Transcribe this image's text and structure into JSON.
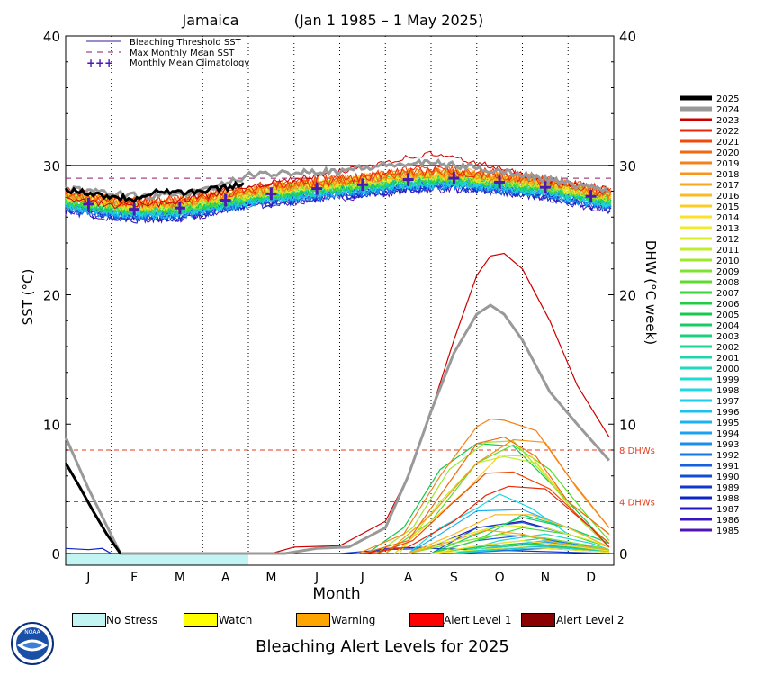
{
  "chart_data": {
    "type": "line",
    "title": "Jamaica",
    "subtitle": "(Jan 1 1985 – 1 May 2025)",
    "xlabel": "Month",
    "ylabel_left": "SST (°C)",
    "ylabel_right": "DHW (°C week)",
    "ylim": [
      0,
      40
    ],
    "yticks": [
      "0",
      "10",
      "20",
      "30",
      "40"
    ],
    "yticks_right": [
      "0",
      "10",
      "20",
      "30",
      "40"
    ],
    "months": [
      "J",
      "F",
      "M",
      "A",
      "M",
      "J",
      "J",
      "A",
      "S",
      "O",
      "N",
      "D"
    ],
    "grid": "vertical dotted at month boundaries",
    "bleaching_threshold_sst": 30.0,
    "max_monthly_mean_sst": 29.0,
    "dhw_thresholds": [
      {
        "value": 8,
        "label": "8 DHWs"
      },
      {
        "value": 4,
        "label": "4 DHWs"
      }
    ],
    "inner_legend": [
      "Bleaching Threshold SST",
      "Max Monthly Mean SST",
      "Monthly Mean Climatology"
    ],
    "monthly_mean_climatology": [
      27.0,
      26.6,
      26.7,
      27.3,
      27.8,
      28.2,
      28.5,
      28.9,
      29.0,
      28.7,
      28.3,
      27.6
    ],
    "series": [
      {
        "name": "2025",
        "color": "#000000",
        "sst": {
          "x": [
            0,
            0.5,
            1.0,
            1.5,
            2.0,
            2.5,
            3.0,
            3.5,
            3.95
          ],
          "y": [
            28.1,
            27.9,
            27.6,
            27.4,
            28.1,
            27.9,
            28.0,
            28.3,
            28.6
          ]
        },
        "dhw": {
          "x": [
            0,
            0.3,
            0.6,
            0.9,
            1.2
          ],
          "y": [
            7.0,
            5.2,
            3.3,
            1.5,
            0.0
          ]
        }
      },
      {
        "name": "2024",
        "color": "#999999",
        "sst": {
          "x": [
            0,
            1,
            2,
            3,
            4,
            5,
            6,
            7,
            8,
            9,
            10,
            11,
            11.9
          ],
          "y": [
            28.2,
            27.8,
            27.6,
            28.0,
            29.2,
            29.5,
            29.6,
            30.0,
            30.2,
            29.8,
            29.3,
            28.6,
            28.1
          ]
        },
        "dhw": {
          "x": [
            0,
            0.5,
            1.2,
            4.8,
            5.5,
            6.2,
            7.0,
            7.5,
            8.0,
            8.5,
            9.0,
            9.3,
            9.6,
            10.0,
            10.6,
            11.2,
            11.9
          ],
          "y": [
            9.0,
            5.0,
            0.0,
            0.0,
            0.4,
            0.5,
            2.0,
            6.0,
            11.0,
            15.5,
            18.5,
            19.2,
            18.5,
            16.5,
            12.5,
            10.0,
            7.2
          ]
        }
      },
      {
        "name": "2023",
        "color": "#cc0000",
        "sst": {
          "x": [
            0,
            1,
            2,
            3,
            4,
            5,
            6,
            7,
            8,
            9,
            10,
            11,
            11.9
          ],
          "y": [
            27.4,
            26.9,
            27.0,
            27.6,
            28.4,
            28.9,
            29.5,
            30.3,
            30.9,
            30.2,
            29.3,
            28.6,
            28.1
          ]
        },
        "dhw": {
          "x": [
            0,
            4.5,
            5.0,
            6.0,
            7.0,
            7.5,
            8.0,
            8.5,
            9.0,
            9.3,
            9.6,
            10.0,
            10.6,
            11.2,
            11.9
          ],
          "y": [
            0.0,
            0.0,
            0.5,
            0.6,
            2.5,
            6.0,
            11.0,
            16.5,
            21.5,
            23.0,
            23.2,
            22.0,
            18.0,
            13.0,
            9.0
          ]
        }
      },
      {
        "name": "2022",
        "color": "#e8280a",
        "dhw": {
          "x": [
            6.5,
            7.5,
            8.5,
            9.2,
            9.7,
            10.5,
            11.5,
            11.9
          ],
          "y": [
            0.0,
            0.5,
            2.5,
            4.5,
            5.2,
            5.0,
            2.0,
            0.5
          ]
        }
      },
      {
        "name": "2021",
        "color": "#ee4a0a",
        "dhw": {
          "x": [
            6.8,
            7.6,
            8.5,
            9.2,
            9.8,
            10.6,
            11.5,
            11.9
          ],
          "y": [
            0.0,
            1.0,
            4.0,
            6.2,
            6.3,
            5.0,
            2.0,
            0.8
          ]
        }
      },
      {
        "name": "2020",
        "color": "#f26a10",
        "dhw": {
          "x": [
            6.5,
            7.5,
            8.3,
            9.0,
            9.6,
            10.3,
            11.0,
            11.9
          ],
          "y": [
            0.0,
            1.0,
            5.0,
            8.5,
            9.0,
            7.5,
            4.0,
            1.5
          ]
        }
      },
      {
        "name": "2019",
        "color": "#f58218",
        "dhw": {
          "x": [
            6.4,
            7.4,
            8.2,
            9.0,
            9.3,
            9.6,
            10.3,
            11.0,
            11.9
          ],
          "y": [
            0.0,
            1.5,
            6.0,
            9.8,
            10.4,
            10.3,
            9.5,
            6.0,
            2.0
          ]
        }
      },
      {
        "name": "2018",
        "color": "#f7951c",
        "dhw": {
          "x": [
            7.0,
            8.0,
            9.0,
            9.8,
            10.5,
            11.2,
            11.9
          ],
          "y": [
            0.0,
            3.0,
            7.0,
            8.8,
            8.6,
            5.0,
            2.0
          ]
        }
      },
      {
        "name": "2017",
        "color": "#f8a820",
        "dhw": {
          "x": [
            7.5,
            8.5,
            9.2,
            10.0,
            10.8,
            11.9
          ],
          "y": [
            0.0,
            1.0,
            1.8,
            1.5,
            0.8,
            0.3
          ]
        }
      },
      {
        "name": "2016",
        "color": "#f9bb24",
        "dhw": {
          "x": [
            7.5,
            8.5,
            9.4,
            10.2,
            11.0,
            11.9
          ],
          "y": [
            0.0,
            1.5,
            3.0,
            3.0,
            2.0,
            0.5
          ]
        }
      },
      {
        "name": "2015",
        "color": "#fbcd26",
        "dhw": {
          "x": [
            7.2,
            8.0,
            8.8,
            9.5,
            10.2,
            11.0,
            11.9
          ],
          "y": [
            0.0,
            2.5,
            5.0,
            7.6,
            7.5,
            4.0,
            1.5
          ]
        }
      },
      {
        "name": "2014",
        "color": "#fde028",
        "dhw": {
          "x": [
            8.0,
            9.0,
            10.0,
            11.0,
            11.9
          ],
          "y": [
            0.0,
            0.6,
            1.0,
            0.6,
            0.2
          ]
        }
      },
      {
        "name": "2013",
        "color": "#f4ea2a",
        "dhw": {
          "x": [
            8.0,
            9.0,
            10.0,
            11.0,
            11.9
          ],
          "y": [
            0.0,
            0.3,
            0.5,
            0.3,
            0.1
          ]
        }
      },
      {
        "name": "2012",
        "color": "#d8ee2c",
        "dhw": {
          "x": [
            7.5,
            8.5,
            9.5,
            10.5,
            11.5,
            11.9
          ],
          "y": [
            0.0,
            1.2,
            2.2,
            2.0,
            1.0,
            0.5
          ]
        }
      },
      {
        "name": "2011",
        "color": "#bcee2e",
        "dhw": {
          "x": [
            7.3,
            8.2,
            9.0,
            9.6,
            10.3,
            11.0,
            11.9
          ],
          "y": [
            0.0,
            4.0,
            7.0,
            7.5,
            7.0,
            4.0,
            1.5
          ]
        }
      },
      {
        "name": "2010",
        "color": "#9ce82e",
        "dhw": {
          "x": [
            6.8,
            7.6,
            8.4,
            9.2,
            9.8,
            10.5,
            11.3,
            11.9
          ],
          "y": [
            0.0,
            2.0,
            6.5,
            8.6,
            8.7,
            6.0,
            2.5,
            0.5
          ]
        }
      },
      {
        "name": "2009",
        "color": "#7ee22e",
        "dhw": {
          "x": [
            7.5,
            8.5,
            9.5,
            10.5,
            11.5,
            11.9
          ],
          "y": [
            0.0,
            0.8,
            1.5,
            1.2,
            0.6,
            0.3
          ]
        }
      },
      {
        "name": "2008",
        "color": "#5cdc2e",
        "dhw": {
          "x": [
            7.0,
            8.0,
            9.0,
            9.8,
            10.6,
            11.4,
            11.9
          ],
          "y": [
            0.0,
            2.5,
            7.0,
            8.4,
            6.5,
            3.0,
            1.0
          ]
        }
      },
      {
        "name": "2007",
        "color": "#3ed43a",
        "dhw": {
          "x": [
            8.0,
            9.0,
            10.0,
            11.0,
            11.9
          ],
          "y": [
            0.0,
            1.0,
            2.0,
            1.5,
            0.5
          ]
        }
      },
      {
        "name": "2006",
        "color": "#22cc44",
        "dhw": {
          "x": [
            8.0,
            9.0,
            10.0,
            11.0,
            11.9
          ],
          "y": [
            0.0,
            0.5,
            0.8,
            0.5,
            0.2
          ]
        }
      },
      {
        "name": "2005",
        "color": "#16c84e",
        "dhw": {
          "x": [
            6.6,
            7.4,
            8.2,
            9.0,
            9.8,
            10.6,
            11.4,
            11.9
          ],
          "y": [
            0.0,
            2.0,
            6.5,
            8.5,
            8.3,
            5.5,
            2.5,
            0.5
          ]
        }
      },
      {
        "name": "2004",
        "color": "#18cc64",
        "dhw": {
          "x": [
            8.0,
            9.0,
            10.0,
            11.0,
            11.9
          ],
          "y": [
            0.0,
            1.5,
            2.8,
            2.0,
            0.8
          ]
        }
      },
      {
        "name": "2003",
        "color": "#1ad07c",
        "dhw": {
          "x": [
            8.0,
            9.0,
            10.0,
            11.0,
            11.9
          ],
          "y": [
            0.0,
            1.0,
            3.0,
            2.0,
            0.8
          ]
        }
      },
      {
        "name": "2002",
        "color": "#1cd494",
        "dhw": {
          "x": [
            8.5,
            9.5,
            10.5,
            11.5,
            11.9
          ],
          "y": [
            0.0,
            0.8,
            1.2,
            0.6,
            0.3
          ]
        }
      },
      {
        "name": "2001",
        "color": "#1ed6aa",
        "dhw": {
          "x": [
            8.5,
            9.5,
            10.5,
            11.5,
            11.9
          ],
          "y": [
            0.0,
            0.5,
            0.8,
            0.4,
            0.2
          ]
        }
      },
      {
        "name": "2000",
        "color": "#20d8c0",
        "dhw": {
          "x": [
            8.5,
            9.5,
            10.5,
            11.5,
            11.9
          ],
          "y": [
            0.0,
            0.3,
            0.5,
            0.3,
            0.1
          ]
        }
      },
      {
        "name": "1999",
        "color": "#22dad4",
        "dhw": {
          "x": [
            8.5,
            9.5,
            10.5,
            11.5,
            11.9
          ],
          "y": [
            0.0,
            1.0,
            1.5,
            0.8,
            0.3
          ]
        }
      },
      {
        "name": "1998",
        "color": "#22d6e4",
        "dhw": {
          "x": [
            7.5,
            8.2,
            9.0,
            9.5,
            10.2,
            11.0,
            11.9
          ],
          "y": [
            0.0,
            2.0,
            3.5,
            4.6,
            3.5,
            1.5,
            0.5
          ]
        }
      },
      {
        "name": "1997",
        "color": "#20ccec",
        "dhw": {
          "x": [
            8.5,
            9.5,
            10.5,
            11.5,
            11.9
          ],
          "y": [
            0.0,
            0.6,
            1.0,
            0.5,
            0.2
          ]
        }
      },
      {
        "name": "1996",
        "color": "#1ec0f0",
        "dhw": {
          "x": [
            8.5,
            9.5,
            10.5,
            11.5,
            11.9
          ],
          "y": [
            0.0,
            0.4,
            0.6,
            0.3,
            0.1
          ]
        }
      },
      {
        "name": "1995",
        "color": "#1cb2f2",
        "dhw": {
          "x": [
            7.5,
            8.2,
            9.0,
            10.0,
            11.0,
            11.9
          ],
          "y": [
            0.0,
            1.5,
            3.3,
            3.4,
            2.0,
            0.5
          ]
        }
      },
      {
        "name": "1994",
        "color": "#1aa2f0",
        "dhw": {
          "x": [
            8.5,
            9.5,
            10.5,
            11.5,
            11.9
          ],
          "y": [
            0.0,
            0.5,
            0.9,
            0.5,
            0.2
          ]
        }
      },
      {
        "name": "1993",
        "color": "#188eee",
        "dhw": {
          "x": [
            8.5,
            9.5,
            10.5,
            11.5,
            11.9
          ],
          "y": [
            0.0,
            0.3,
            0.6,
            0.3,
            0.1
          ]
        }
      },
      {
        "name": "1992",
        "color": "#1678e6",
        "dhw": {
          "x": [
            8.5,
            9.5,
            10.5,
            11.5,
            11.9
          ],
          "y": [
            0.0,
            0.2,
            0.4,
            0.2,
            0.1
          ]
        }
      },
      {
        "name": "1991",
        "color": "#1462de",
        "dhw": {
          "x": [
            8.0,
            9.0,
            10.0,
            11.0,
            11.9
          ],
          "y": [
            0.0,
            1.0,
            1.4,
            0.8,
            0.3
          ]
        }
      },
      {
        "name": "1990",
        "color": "#124cd6",
        "dhw": {
          "x": [
            8.0,
            9.0,
            10.0,
            11.0,
            11.9
          ],
          "y": [
            0.0,
            2.0,
            2.4,
            1.5,
            0.5
          ]
        }
      },
      {
        "name": "1989",
        "color": "#1038ce",
        "dhw": {
          "x": [
            6.0,
            7.0,
            8.0,
            9.0,
            10.0,
            11.0,
            11.9
          ],
          "y": [
            0.0,
            0.3,
            0.4,
            0.3,
            0.2,
            0.1,
            0.0
          ]
        }
      },
      {
        "name": "1988",
        "color": "#0e24c4",
        "dhw": {
          "x": [
            0,
            0.5,
            0.8,
            1.0,
            2.0,
            3.0
          ],
          "y": [
            0.4,
            0.3,
            0.4,
            0.0,
            0.0,
            0.0
          ]
        }
      },
      {
        "name": "1987",
        "color": "#2414c0",
        "dhw": {
          "x": [
            6.5,
            7.0,
            8.0,
            9.0,
            10.0,
            11.0,
            11.9
          ],
          "y": [
            0.0,
            0.4,
            0.5,
            2.0,
            2.5,
            1.5,
            0.5
          ]
        }
      },
      {
        "name": "1986",
        "color": "#3a14bc",
        "dhw": {
          "x": [
            8.5,
            9.5,
            10.5,
            11.5,
            11.9
          ],
          "y": [
            0.0,
            0.5,
            0.8,
            0.4,
            0.2
          ]
        }
      },
      {
        "name": "1985",
        "color": "#5014b8",
        "dhw": {
          "x": [
            8.5,
            9.5,
            10.5,
            11.5,
            11.9
          ],
          "y": [
            0.0,
            0.3,
            0.5,
            0.3,
            0.1
          ]
        }
      }
    ],
    "alert_2025_bar": {
      "level": "No Stress",
      "from_month": 0,
      "to_month": 4
    }
  },
  "footer": {
    "alert_legend": [
      {
        "label": "No Stress",
        "color": "#c2f4f4"
      },
      {
        "label": "Watch",
        "color": "#ffff00"
      },
      {
        "label": "Warning",
        "color": "#ffa500"
      },
      {
        "label": "Alert Level 1",
        "color": "#ff0000"
      },
      {
        "label": "Alert Level 2",
        "color": "#8b0000"
      }
    ],
    "title": "Bleaching Alert Levels for 2025",
    "logo_text": "NOAA"
  }
}
